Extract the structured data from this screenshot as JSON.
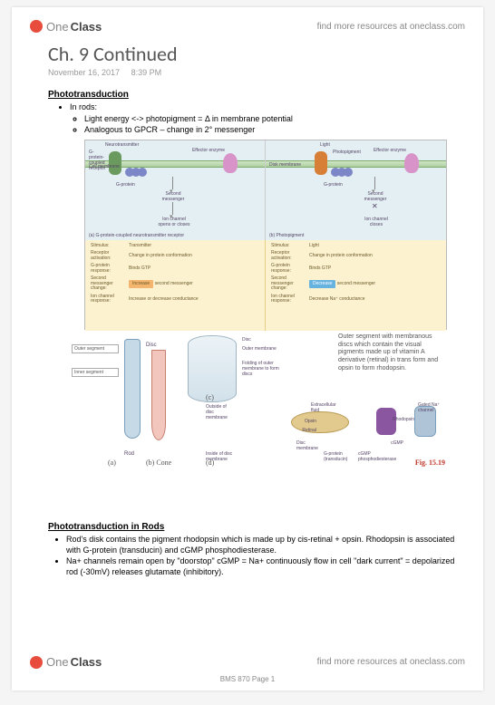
{
  "brand": {
    "name_a": "One",
    "name_b": "Class",
    "tagline": "find more resources at oneclass.com"
  },
  "header": {
    "title": "Ch. 9 Continued",
    "date": "November 16, 2017",
    "time": "8:39 PM"
  },
  "section1": {
    "heading": "Phototransduction",
    "b1": "In rods:",
    "b1a": "Light energy <-> photopigment = Δ in membrane potential",
    "b1b": "Analogous to GPCR – change in 2° messenger"
  },
  "signal": {
    "bg_top": "#e3eff3",
    "bg_bottom": "#fdf2d0",
    "left": {
      "top_label": "Neurotransmitter",
      "labels": {
        "gpcr": "G-protein-coupled receptor",
        "cellmem": "Cell membrane",
        "eff": "Effector enzyme",
        "gp": "G-protein",
        "sm": "Second messenger",
        "ion": "Ion channel opens or closes",
        "caption": "(a) G-protein-coupled neurotransmitter receptor"
      },
      "rows": [
        {
          "k": "Stimulus:",
          "v": "Transmitter"
        },
        {
          "k": "Receptor activation:",
          "v": "Change in protein conformation"
        },
        {
          "k": "G-protein response:",
          "v": "Binds GTP"
        },
        {
          "k": "Second messenger change:",
          "v": "",
          "pill": "orange",
          "pill_text": "Increase",
          "tail": " second messenger"
        },
        {
          "k": "Ion channel response:",
          "v": "Increase or decrease conductance"
        }
      ]
    },
    "right": {
      "top_label": "Light",
      "labels": {
        "pp": "Photopigment",
        "dm": "Disk membrane",
        "eff": "Effector enzyme",
        "gp": "G-protein",
        "sm": "Second messenger",
        "ion": "Ion channel closes",
        "caption": "(b) Photopigment"
      },
      "rows": [
        {
          "k": "Stimulus:",
          "v": "Light"
        },
        {
          "k": "Receptor activation:",
          "v": "Change in protein conformation"
        },
        {
          "k": "G-protein response:",
          "v": "Binds GTP"
        },
        {
          "k": "Second messenger change:",
          "v": "",
          "pill": "blue",
          "pill_text": "Decrease",
          "tail": " second messenger"
        },
        {
          "k": "Ion channel response:",
          "v": "Decrease Na⁺ conductance"
        }
      ]
    }
  },
  "rod": {
    "seg_outer": "Outer segment",
    "seg_inner": "Inner segment",
    "disc_label": "Disc",
    "rod_label": "Rod",
    "cone_label": "(b) Cone",
    "a": "(a)",
    "c": "(c)",
    "d": "(d)",
    "cyl_labels": {
      "disc": "Disc",
      "outermem": "Outer membrane",
      "fold": "Folding of outer membrane to form discs"
    },
    "mid_labels": {
      "outside": "Outside of disc membrane",
      "bottom": "Inside of disc membrane",
      "extra": "Extracellular fluid",
      "opsin": "Opsin",
      "retinal": "Retinal",
      "rhod": "Rhodopsin",
      "discmem": "Disc membrane",
      "gatech": "Gated Na⁺ channel",
      "cgmp": "cGMP",
      "gp": "G-protein (transducin)",
      "pde": "cGMP phosphodiesterase"
    },
    "text": "Outer segment with membranous discs which contain the visual pigments made up of vitamin A derivative (retinal) in trans form and opsin to form rhodopsin.",
    "fig": "Fig. 15.19"
  },
  "section2": {
    "heading": "Phototransduction in Rods",
    "b1": "Rod's disk contains the pigment rhodopsin which is made up by cis-retinal + opsin. Rhodopsin is associated with G-protein (transducin) and cGMP phosphodiesterase.",
    "b2": "Na+ channels remain open by \"doorstop\" cGMP = Na+ continuously flow in cell \"dark current\" = depolarized rod (-30mV) releases glutamate (inhibitory)."
  },
  "footer": {
    "page": "BMS 870 Page 1"
  },
  "colors": {
    "pill_orange": "#f4b56e",
    "pill_blue": "#66b3e0",
    "rhod": "#8a56a0",
    "rod": "#c6d9e6",
    "cone": "#f2c6bd"
  }
}
